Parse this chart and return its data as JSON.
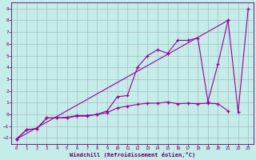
{
  "xlabel": "Windchill (Refroidissement éolien,°C)",
  "bg_color": "#c4ece8",
  "line_color": "#990099",
  "grid_color": "#aabbc4",
  "xlim": [
    -0.5,
    23.5
  ],
  "ylim": [
    -2.5,
    9.5
  ],
  "xticks": [
    0,
    1,
    2,
    3,
    4,
    5,
    6,
    7,
    8,
    9,
    10,
    11,
    12,
    13,
    14,
    15,
    16,
    17,
    18,
    19,
    20,
    21,
    22,
    23
  ],
  "yticks": [
    -2,
    -1,
    0,
    1,
    2,
    3,
    4,
    5,
    6,
    7,
    8,
    9
  ],
  "line1_x": [
    0,
    1,
    2,
    3,
    4,
    5,
    6,
    7,
    8,
    9,
    10,
    11,
    12,
    13,
    14,
    15,
    16,
    17,
    18,
    19,
    20,
    21
  ],
  "line1_y": [
    -2.1,
    -1.3,
    -1.2,
    -0.3,
    -0.3,
    -0.25,
    -0.1,
    -0.1,
    0.0,
    0.3,
    1.5,
    1.6,
    4.0,
    5.0,
    5.5,
    5.2,
    6.3,
    6.3,
    6.5,
    1.1,
    4.3,
    8.0
  ],
  "line2_x": [
    0,
    1,
    2,
    3,
    4,
    5,
    6,
    7,
    8,
    9,
    10,
    11,
    12,
    13,
    14,
    15,
    16,
    17,
    18,
    19,
    20,
    21
  ],
  "line2_y": [
    -2.1,
    -1.3,
    -1.25,
    -0.3,
    -0.3,
    -0.3,
    -0.15,
    -0.15,
    0.0,
    0.15,
    0.55,
    0.7,
    0.85,
    0.95,
    0.95,
    1.05,
    0.9,
    0.95,
    0.9,
    0.95,
    0.9,
    0.3
  ],
  "line3_x": [
    0,
    21,
    22,
    23
  ],
  "line3_y": [
    -2.1,
    8.0,
    0.2,
    9.0
  ]
}
